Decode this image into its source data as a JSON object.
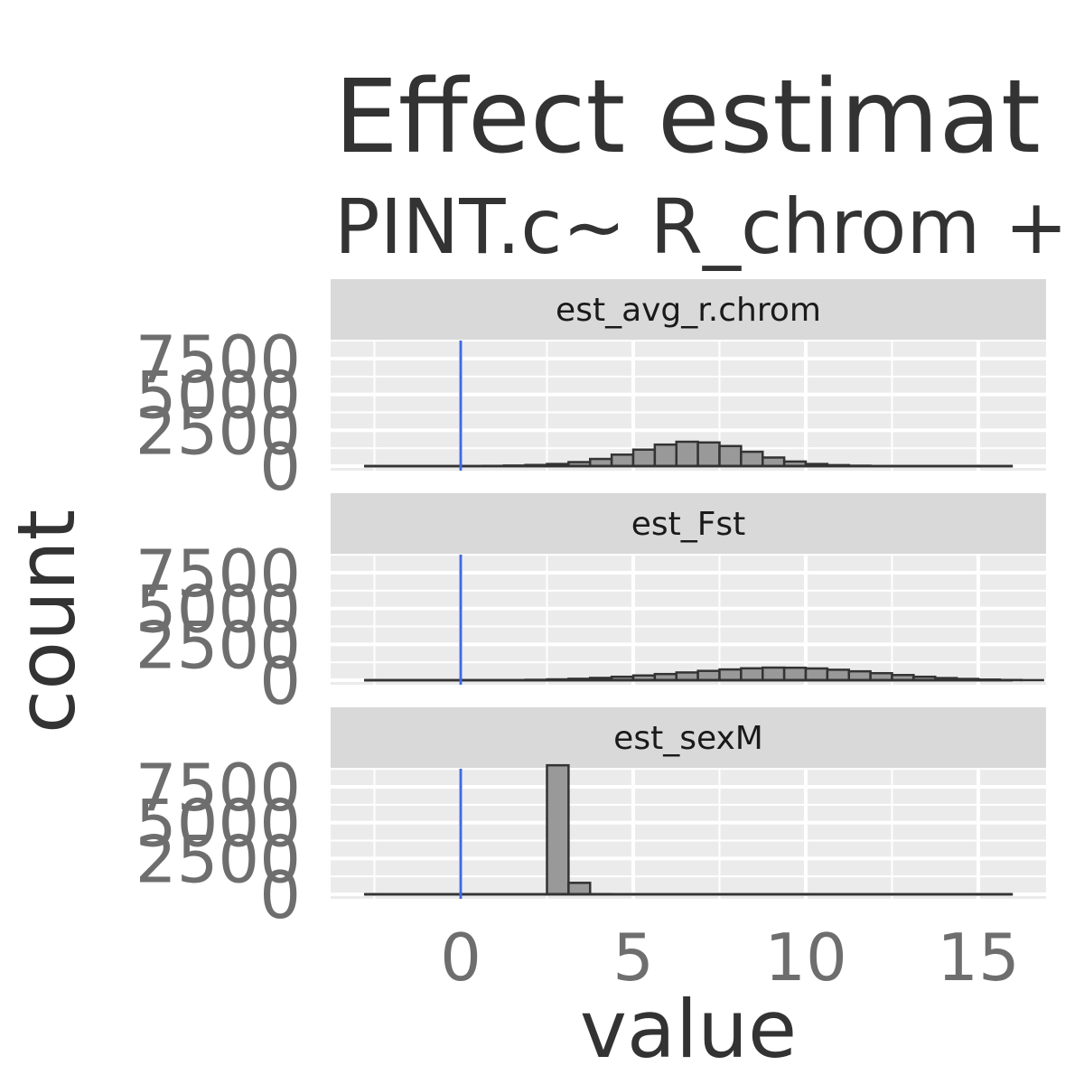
{
  "chart_data": {
    "type": "bar",
    "title": "Effect estimat",
    "subtitle": "PINT.c~ R_chrom +",
    "xlabel": "value",
    "ylabel": "count",
    "xlim": [
      -3.2,
      17.5
    ],
    "ylim": [
      0,
      9000
    ],
    "x_ticks": [
      0,
      5,
      10,
      15
    ],
    "x_tick_labels": [
      "0",
      "5",
      "10",
      "15"
    ],
    "y_ticks": [
      0,
      2500,
      5000,
      7500
    ],
    "y_tick_labels": [
      "0",
      "2500",
      "5000",
      "7500"
    ],
    "vline": 0,
    "bin_width": 0.625,
    "bin_start": -2.5,
    "colors": {
      "panel_bg": "#ebebeb",
      "strip_bg": "#d9d9d9",
      "bar_fill": "#999999",
      "bar_stroke": "#333333",
      "vline": "#4169e1"
    },
    "panels": [
      {
        "strip": "est_avg_r.chrom",
        "values": [
          0,
          0,
          0,
          5,
          10,
          20,
          40,
          80,
          150,
          280,
          500,
          800,
          1150,
          1500,
          1700,
          1650,
          1400,
          1000,
          600,
          320,
          150,
          70,
          30,
          12,
          5,
          2,
          1,
          0,
          0,
          0,
          0
        ]
      },
      {
        "strip": "est_Fst",
        "values": [
          0,
          0,
          0,
          0,
          0,
          5,
          15,
          30,
          60,
          100,
          160,
          240,
          330,
          430,
          540,
          650,
          750,
          830,
          880,
          870,
          820,
          730,
          620,
          490,
          360,
          240,
          150,
          90,
          45,
          20,
          8
        ]
      },
      {
        "strip": "est_sexM",
        "values": [
          0,
          0,
          0,
          0,
          0,
          0,
          0,
          0,
          9000,
          800,
          20,
          0,
          0,
          0,
          0,
          0,
          0,
          0,
          0,
          0,
          0,
          0,
          0,
          0,
          0,
          0,
          0,
          0,
          0,
          0,
          0
        ]
      }
    ]
  }
}
